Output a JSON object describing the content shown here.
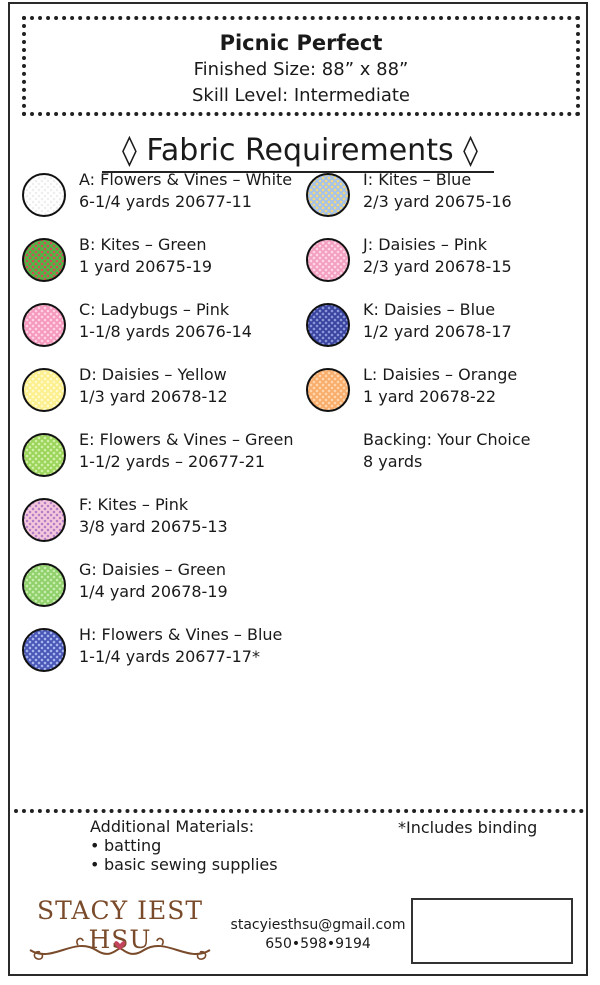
{
  "header": {
    "title": "Picnic Perfect",
    "finished_size": "Finished Size: 88” x 88”",
    "skill_level": "Skill Level: Intermediate"
  },
  "section_title": "◊  Fabric Requirements  ◊",
  "fabrics": [
    {
      "name": "A: Flowers & Vines – White",
      "amount": "6-1/4 yards  20677-11",
      "color": "#ffffff",
      "dot": "#eeeeee"
    },
    {
      "name": "B: Kites – Green",
      "amount": "1 yard  20675-19",
      "color": "#4fb544",
      "dot": "#d94a56"
    },
    {
      "name": "C: Ladybugs – Pink",
      "amount": "1-1/8 yards  20676-14",
      "color": "#f598bd",
      "dot": "#ffd3e4"
    },
    {
      "name": "D: Daisies – Yellow",
      "amount": "1/3 yard  20678-12",
      "color": "#fdf08c",
      "dot": "#fffbd0"
    },
    {
      "name": "E: Flowers & Vines – Green",
      "amount": "1-1/2 yards – 20677-21",
      "color": "#9bd45a",
      "dot": "#d2f0a8"
    },
    {
      "name": "F: Kites – Pink",
      "amount": "3/8 yard  20675-13",
      "color": "#f7c8dc",
      "dot": "#b07ec8"
    },
    {
      "name": "G: Daisies – Green",
      "amount": "1/4 yard  20678-19",
      "color": "#8fd06a",
      "dot": "#c8eeae"
    },
    {
      "name": "H: Flowers & Vines – Blue",
      "amount": "1-1/4 yards  20677-17*",
      "color": "#4857b5",
      "dot": "#a9b5ef"
    },
    {
      "name": "I: Kites – Blue",
      "amount": "2/3 yard  20675-16",
      "color": "#a6c1ea",
      "dot": "#f3d87a"
    },
    {
      "name": "J: Daisies – Pink",
      "amount": "2/3 yard  20678-15",
      "color": "#f3a0c0",
      "dot": "#ffd6e6"
    },
    {
      "name": "K: Daisies – Blue",
      "amount": "1/2 yard  20678-17",
      "color": "#39449e",
      "dot": "#8d97dc"
    },
    {
      "name": "L: Daisies – Orange",
      "amount": "1 yard  20678-22",
      "color": "#f9ad6c",
      "dot": "#ffd6ae"
    }
  ],
  "backing": {
    "label": "Backing: Your Choice",
    "amount": "8 yards"
  },
  "additional": {
    "heading": "Additional Materials:",
    "items": [
      "batting",
      "basic sewing supplies"
    ]
  },
  "note": "*Includes binding",
  "brand": {
    "name": "STACY IEST HSU",
    "accent": "#7a4b2a",
    "heart": "#c4435d"
  },
  "contact": {
    "email": "stacyiesthsu@gmail.com",
    "phone": "650•598•9194"
  }
}
